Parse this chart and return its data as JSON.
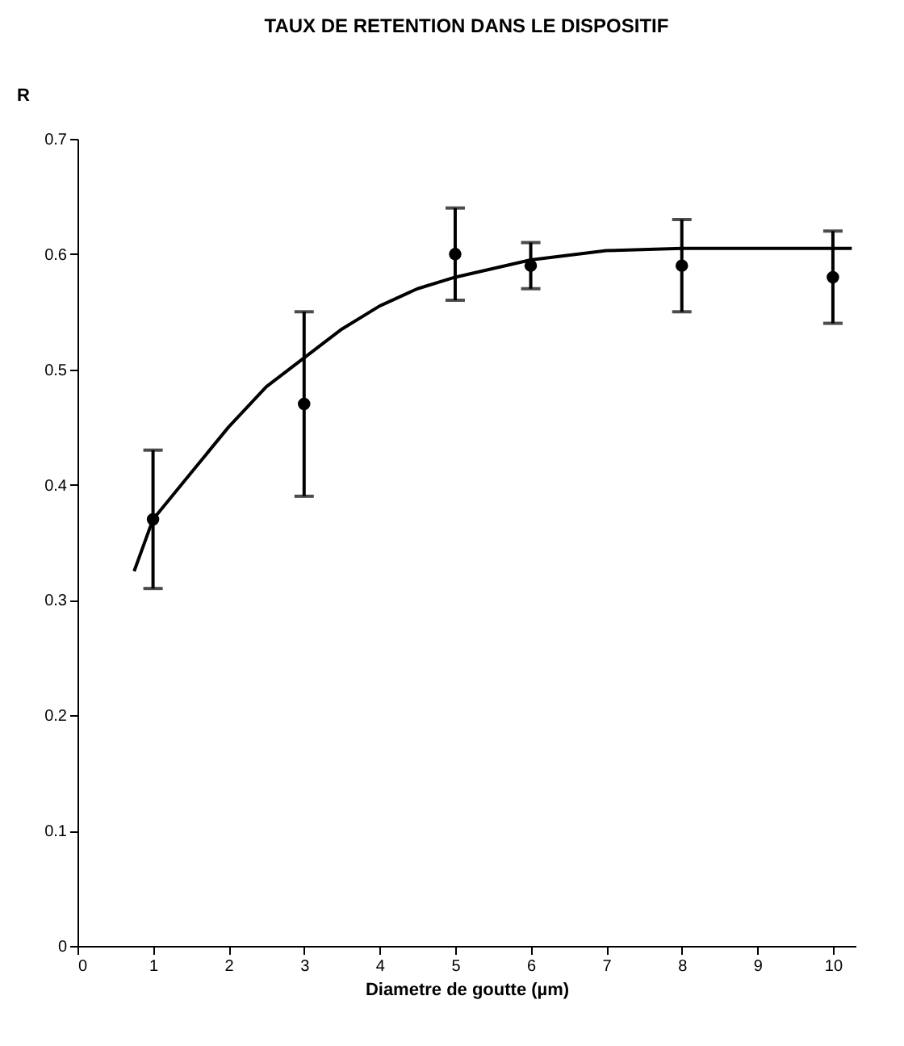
{
  "chart_data": {
    "type": "scatter",
    "title": "TAUX DE RETENTION DANS LE DISPOSITIF",
    "xlabel": "Diametre de goutte (µm)",
    "ylabel": "R",
    "xlim": [
      0,
      10.3
    ],
    "xticks": [
      0,
      1,
      2,
      3,
      4,
      5,
      6,
      7,
      8,
      9,
      10
    ],
    "ylim": [
      0,
      0.7
    ],
    "yticks": [
      0,
      0.1,
      0.2,
      0.3,
      0.4,
      0.5,
      0.6,
      0.7
    ],
    "grid": false,
    "series": [
      {
        "color": "#000000",
        "marker": "circle",
        "x": [
          1,
          3,
          5,
          6,
          8,
          10
        ],
        "values": [
          0.37,
          0.47,
          0.6,
          0.59,
          0.59,
          0.58
        ],
        "errors": [
          [
            0.31,
            0.43
          ],
          [
            0.39,
            0.55
          ],
          [
            0.56,
            0.64
          ],
          [
            0.57,
            0.61
          ],
          [
            0.55,
            0.63
          ],
          [
            0.54,
            0.62
          ]
        ]
      },
      {
        "type": "line",
        "color": "#000000",
        "marker": "none",
        "line_style": "solid",
        "x": [
          0.75,
          1,
          1.5,
          2,
          2.5,
          3,
          3.5,
          4,
          4.5,
          5,
          6,
          7,
          8,
          9,
          10.25
        ],
        "values": [
          0.325,
          0.37,
          0.41,
          0.45,
          0.485,
          0.51,
          0.535,
          0.555,
          0.57,
          0.58,
          0.595,
          0.603,
          0.605,
          0.605,
          0.605
        ]
      }
    ]
  }
}
